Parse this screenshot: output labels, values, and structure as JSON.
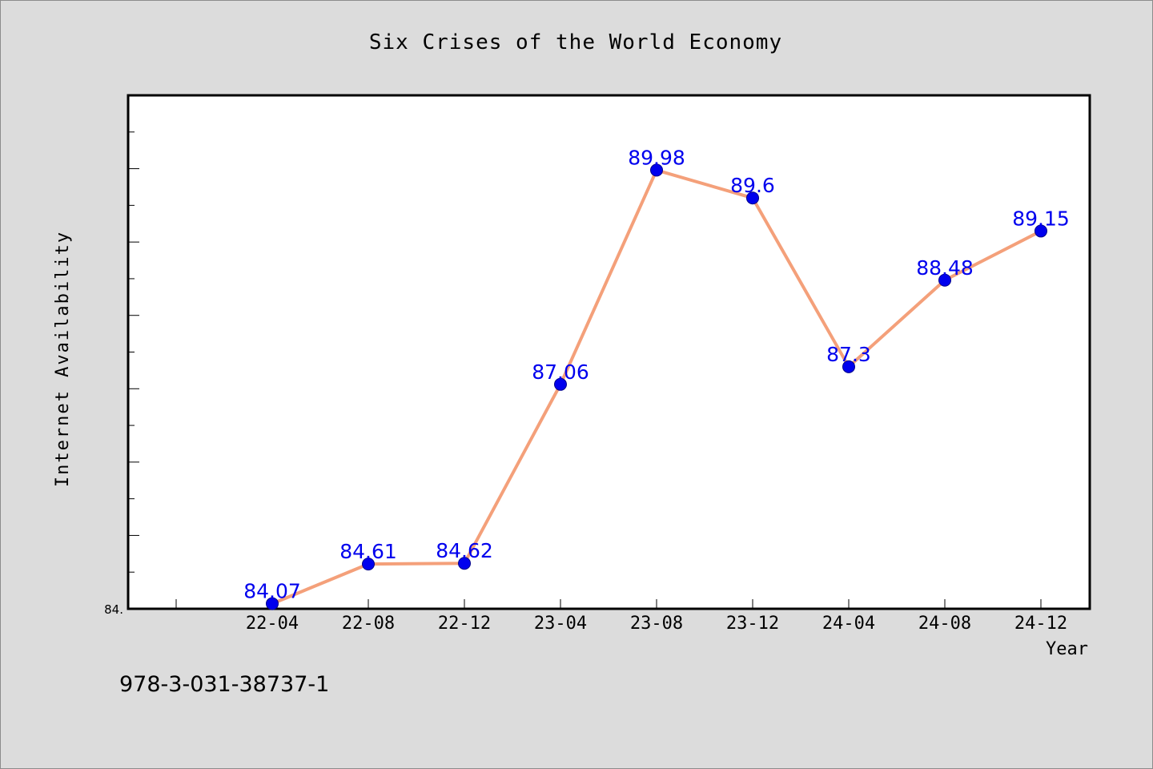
{
  "chart_data": {
    "type": "line",
    "title": "Six Crises of the World Economy",
    "xlabel": "Year",
    "ylabel": "Internet Availability",
    "categories": [
      "22-04",
      "22-08",
      "22-12",
      "23-04",
      "23-08",
      "23-12",
      "24-04",
      "24-08",
      "24-12"
    ],
    "series": [
      {
        "values": [
          84.07,
          84.61,
          84.62,
          87.06,
          89.98,
          89.6,
          87.3,
          88.48,
          89.15
        ],
        "value_labels": [
          "84.07",
          "84.61",
          "84.62",
          "87.06",
          "89.98",
          "89.6",
          "87.3",
          "88.48",
          "89.15"
        ]
      }
    ],
    "ylim": [
      84.0,
      91.0
    ],
    "y_tick_label": "84.",
    "grid": false,
    "legend": "none",
    "colors": {
      "line": "#f4a07a",
      "marker": "#0000ee",
      "label": "#0000ee",
      "background": "#dcdcdc",
      "plot_background": "#ffffff"
    }
  },
  "footer_code": "978-3-031-38737-1"
}
